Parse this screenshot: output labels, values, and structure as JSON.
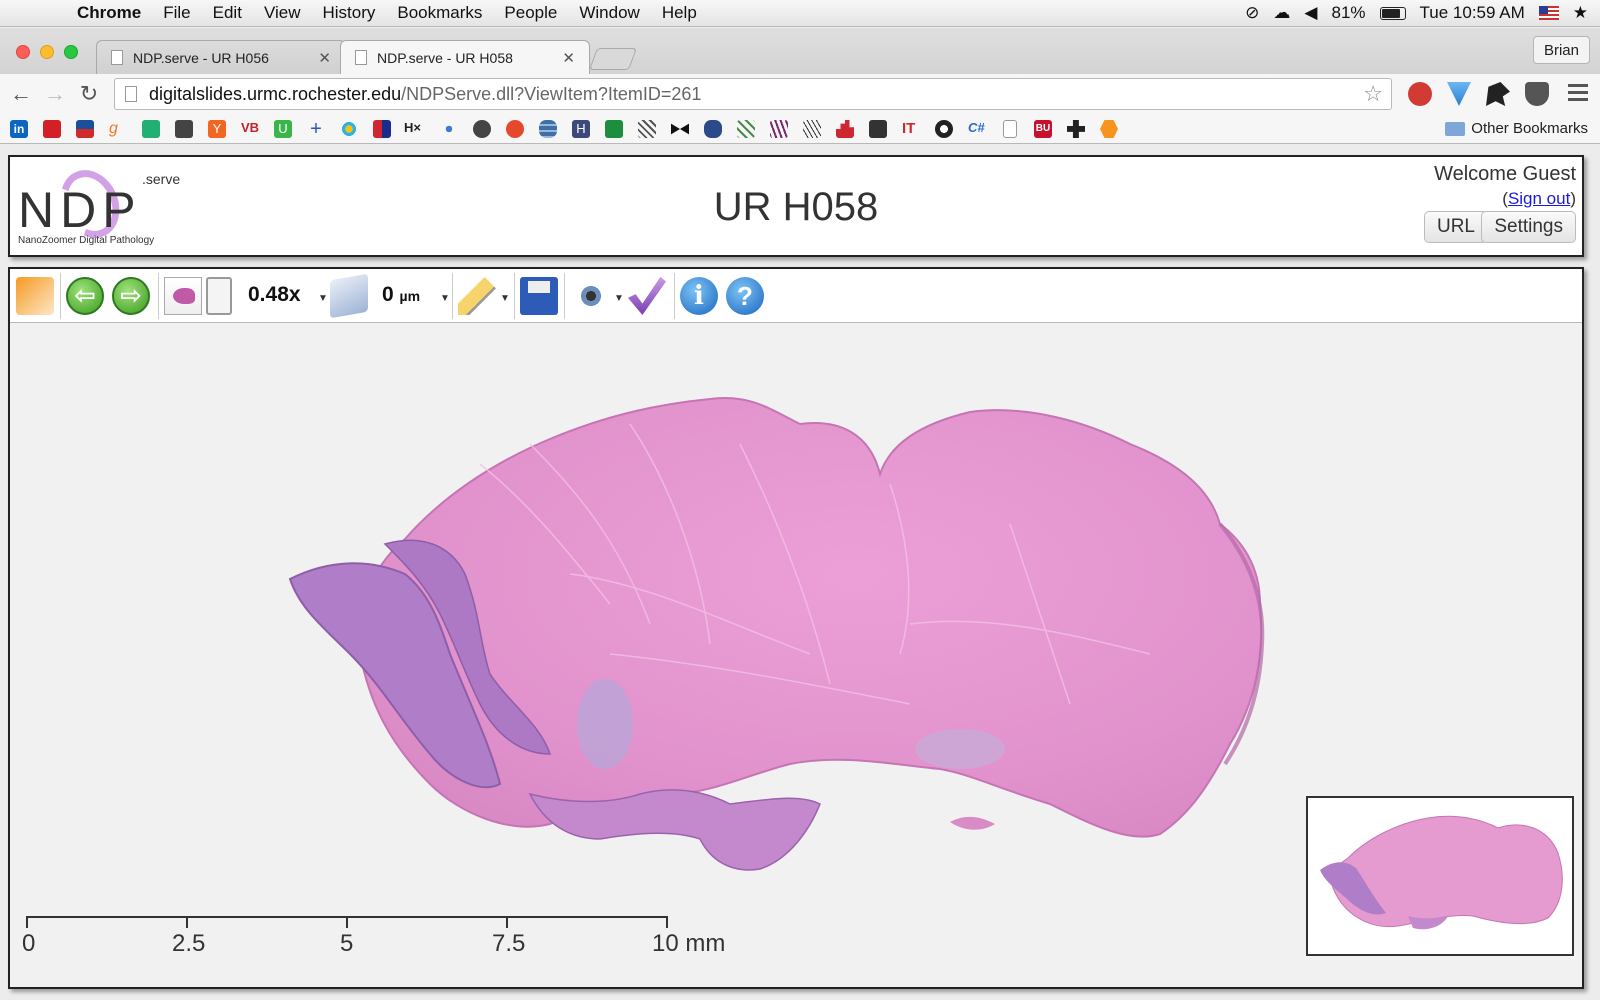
{
  "menubar": {
    "app_name": "Chrome",
    "menus": [
      "File",
      "Edit",
      "View",
      "History",
      "Bookmarks",
      "People",
      "Window",
      "Help"
    ],
    "battery": "81%",
    "clock": "Tue 10:59 AM"
  },
  "tabs": [
    {
      "title": "NDP.serve - UR H056",
      "active": false
    },
    {
      "title": "NDP.serve - UR H058",
      "active": true
    }
  ],
  "profile_name": "Brian",
  "address_bar": {
    "host": "digitalslides.urmc.rochester.edu",
    "path": "/NDPServe.dll?ViewItem?ItemID=261"
  },
  "bookmarks": {
    "items": [
      "in",
      "",
      "",
      "g",
      "",
      "",
      "Y",
      "VB",
      "U",
      "+",
      "",
      "",
      "H×",
      "",
      "",
      "",
      "",
      "H",
      "",
      "",
      "",
      "",
      "",
      "",
      "",
      "",
      "",
      "IT",
      "",
      "C#",
      "",
      "BU",
      "",
      ""
    ],
    "other_label": "Other Bookmarks"
  },
  "header": {
    "logo_letters": "NDP",
    "logo_sup": ".serve",
    "logo_sub": "NanoZoomer Digital Pathology",
    "title": "UR H058",
    "welcome": "Welcome Guest",
    "signout_open": "(",
    "signout_link": "Sign out",
    "signout_close": ")",
    "url_button": "URL",
    "settings_button": "Settings"
  },
  "viewer": {
    "zoom": "0.48x",
    "depth_value": "0",
    "depth_unit": "µm",
    "prev_arrow": "⇦",
    "next_arrow": "⇨",
    "info_glyph": "i",
    "help_glyph": "?",
    "scale_labels": [
      "0",
      "2.5",
      "5",
      "7.5",
      "10 mm"
    ]
  },
  "colors": {
    "tissue_pink": "#e59ad0",
    "tissue_purple": "#a87cc4",
    "slide_bg": "#f1f1f1"
  }
}
